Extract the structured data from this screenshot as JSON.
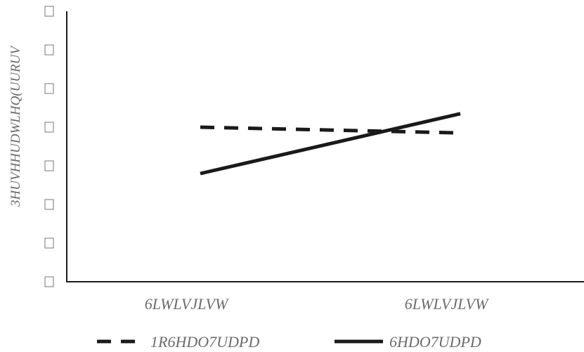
{
  "chart_data": {
    "type": "line",
    "title": "",
    "ylabel": "3HUVHHUDWLHQ(UURUV",
    "xlabel": "",
    "categories": [
      "6LWLVJLVW",
      "6LWLVJLVW"
    ],
    "ylim": [
      0,
      7
    ],
    "y_tick_labels": [
      "",
      "",
      "",
      "",
      "",
      "",
      "",
      ""
    ],
    "grid": false,
    "legend_position": "bottom",
    "series": [
      {
        "name": "1R6HDO7UDPD",
        "style": "dashed",
        "color": "#1a1a1a",
        "values": [
          4.0,
          3.85
        ]
      },
      {
        "name": "6HDO7UDPD",
        "style": "solid",
        "color": "#1a1a1a",
        "values": [
          2.8,
          4.35
        ]
      }
    ]
  }
}
